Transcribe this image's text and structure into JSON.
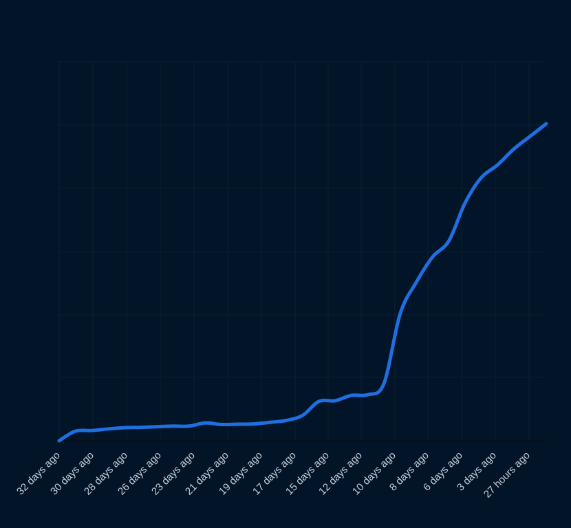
{
  "chart_data": {
    "type": "line",
    "title": "",
    "xlabel": "",
    "ylabel": "",
    "x_tick_labels": [
      "32 days ago",
      "30 days ago",
      "28 days ago",
      "26 days ago",
      "23 days ago",
      "21 days ago",
      "19 days ago",
      "17 days ago",
      "15 days ago",
      "12 days ago",
      "10 days ago",
      "8 days ago",
      "6 days ago",
      "3 days ago",
      "27 hours ago"
    ],
    "y_tick_labels": [],
    "grid": true,
    "legend": "none",
    "colors": {
      "background": "#011428",
      "line": "#1f6fe0",
      "grid": "#0f1e30",
      "axis": "#0a0f16",
      "tick_text": "#c8cdd6"
    },
    "series": [
      {
        "points": [
          [
            0,
            0
          ],
          [
            1,
            3
          ],
          [
            2,
            3.2
          ],
          [
            3,
            3.7
          ],
          [
            4,
            4.1
          ],
          [
            5,
            4.2
          ],
          [
            6,
            4.4
          ],
          [
            7,
            4.6
          ],
          [
            8,
            4.6
          ],
          [
            9,
            5.6
          ],
          [
            10,
            5.1
          ],
          [
            11,
            5.2
          ],
          [
            12,
            5.3
          ],
          [
            13,
            5.8
          ],
          [
            14,
            6.4
          ],
          [
            15,
            8
          ],
          [
            16,
            12.4
          ],
          [
            17,
            12.6
          ],
          [
            18,
            14.3
          ],
          [
            19,
            14.5
          ],
          [
            20,
            18
          ],
          [
            21,
            40
          ],
          [
            22,
            50
          ],
          [
            23,
            58
          ],
          [
            24,
            63
          ],
          [
            25,
            75
          ],
          [
            26,
            83
          ],
          [
            27,
            87
          ],
          [
            28,
            92
          ],
          [
            29,
            96
          ],
          [
            30,
            100
          ]
        ]
      }
    ]
  }
}
